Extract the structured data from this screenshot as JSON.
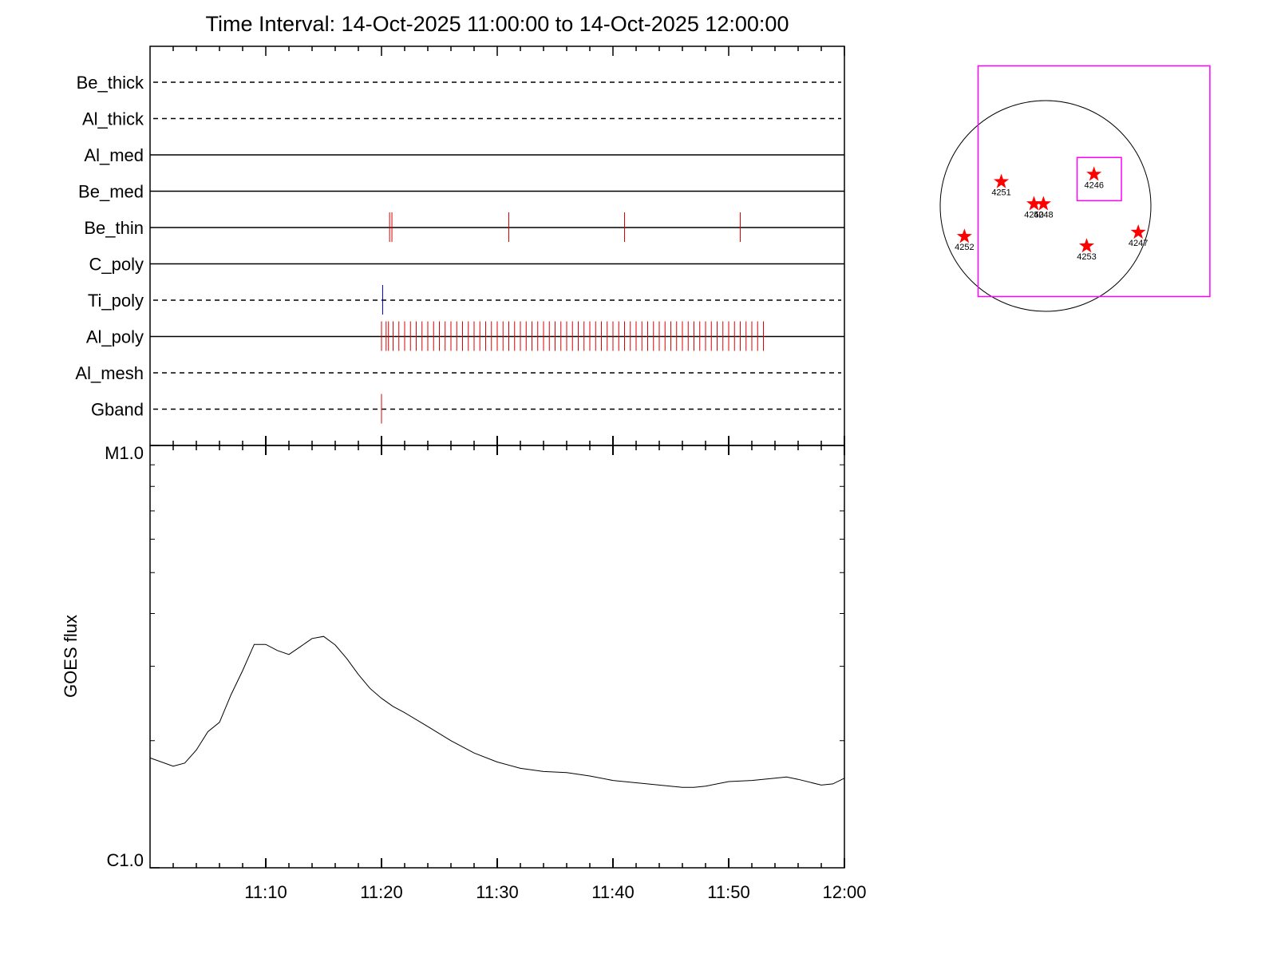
{
  "chart_data": [
    {
      "type": "timeline",
      "title": "Time Interval: 14-Oct-2025 11:00:00 to 14-Oct-2025 12:00:00",
      "xlim": [
        0,
        60
      ],
      "rows": [
        {
          "name": "Be_thick",
          "style": "dashed"
        },
        {
          "name": "Al_thick",
          "style": "dashed"
        },
        {
          "name": "Al_med",
          "style": "solid"
        },
        {
          "name": "Be_med",
          "style": "solid"
        },
        {
          "name": "Be_thin",
          "style": "solid",
          "color": "#e00000",
          "events": [
            20.7,
            20.9,
            31,
            41,
            51
          ]
        },
        {
          "name": "C_poly",
          "style": "solid"
        },
        {
          "name": "Ti_poly",
          "style": "dashed",
          "color": "#0000c0",
          "events": [
            20.1
          ]
        },
        {
          "name": "Al_poly",
          "style": "solid",
          "color": "#e00000",
          "events": [
            20,
            20.4,
            20.6,
            21,
            21.5,
            22,
            22.5,
            23,
            23.5,
            24,
            24.5,
            25,
            25.5,
            26,
            26.5,
            27,
            27.5,
            28,
            28.5,
            29,
            29.5,
            30,
            30.5,
            31,
            31.5,
            32,
            32.5,
            33,
            33.5,
            34,
            34.5,
            35,
            35.5,
            36,
            36.5,
            37,
            37.5,
            38,
            38.5,
            39,
            39.5,
            40,
            40.5,
            41,
            41.5,
            42,
            42.5,
            43,
            43.5,
            44,
            44.5,
            45,
            45.5,
            46,
            46.5,
            47,
            47.5,
            48,
            48.5,
            49,
            49.5,
            50,
            50.5,
            51,
            51.5,
            52,
            52.5,
            53
          ]
        },
        {
          "name": "Al_mesh",
          "style": "dashed"
        },
        {
          "name": "Gband",
          "style": "dashed",
          "color": "#e00000",
          "events": [
            20
          ]
        }
      ]
    },
    {
      "type": "line",
      "ylabel": "GOES flux",
      "log": true,
      "color": "#000000",
      "xlim": [
        0,
        60
      ],
      "xticks": [
        {
          "value": 10,
          "label": "11:10"
        },
        {
          "value": 20,
          "label": "11:20"
        },
        {
          "value": 30,
          "label": "11:30"
        },
        {
          "value": 40,
          "label": "11:40"
        },
        {
          "value": 50,
          "label": "11:50"
        },
        {
          "value": 60,
          "label": "12:00"
        }
      ],
      "minor_xticks": [
        2,
        4,
        6,
        8,
        12,
        14,
        16,
        18,
        22,
        24,
        26,
        28,
        32,
        34,
        36,
        38,
        42,
        44,
        46,
        48,
        52,
        54,
        56,
        58
      ],
      "ylim": [
        1e-06,
        1e-05
      ],
      "yticks": [
        {
          "value": 1e-06,
          "label": "C1.0"
        },
        {
          "value": 1e-05,
          "label": "M1.0"
        }
      ],
      "minor_yticks": [
        2e-06,
        3e-06,
        4e-06,
        5e-06,
        6e-06,
        7e-06,
        8e-06,
        9e-06
      ],
      "x": [
        0,
        2,
        3,
        4,
        5,
        6,
        7,
        8,
        9,
        10,
        11,
        12,
        13,
        14,
        15,
        16,
        17,
        18,
        19,
        20,
        21,
        22,
        24,
        26,
        28,
        30,
        32,
        34,
        36,
        38,
        40,
        42,
        44,
        46,
        47,
        48,
        50,
        52,
        54,
        55,
        56,
        58,
        59,
        60
      ],
      "values": [
        1.82e-06,
        1.74e-06,
        1.77e-06,
        1.9e-06,
        2.1e-06,
        2.21e-06,
        2.57e-06,
        2.93e-06,
        3.38e-06,
        3.38e-06,
        3.27e-06,
        3.2e-06,
        3.34e-06,
        3.49e-06,
        3.53e-06,
        3.37e-06,
        3.13e-06,
        2.87e-06,
        2.66e-06,
        2.52e-06,
        2.41e-06,
        2.33e-06,
        2.16e-06,
        2e-06,
        1.87e-06,
        1.78e-06,
        1.72e-06,
        1.69e-06,
        1.68e-06,
        1.65e-06,
        1.61e-06,
        1.59e-06,
        1.57e-06,
        1.55e-06,
        1.55e-06,
        1.56e-06,
        1.6e-06,
        1.61e-06,
        1.63e-06,
        1.64e-06,
        1.62e-06,
        1.57e-06,
        1.58e-06,
        1.63e-06
      ]
    },
    {
      "type": "disk",
      "color": "#ff0000",
      "box_color": "#ff00ff",
      "boxes": [
        [
          -0.64,
          1.33,
          1.56,
          -0.86
        ],
        [
          0.3,
          0.46,
          0.72,
          0.05
        ]
      ],
      "regions": [
        {
          "label": "4251",
          "x": -0.42,
          "y": 0.23
        },
        {
          "label": "4250",
          "x": -0.11,
          "y": 0.02
        },
        {
          "label": "4248",
          "x": -0.02,
          "y": 0.02
        },
        {
          "label": "4246",
          "x": 0.46,
          "y": 0.3
        },
        {
          "label": "4252",
          "x": -0.77,
          "y": -0.29
        },
        {
          "label": "4253",
          "x": 0.39,
          "y": -0.38
        },
        {
          "label": "4247",
          "x": 0.88,
          "y": -0.25
        }
      ]
    }
  ]
}
